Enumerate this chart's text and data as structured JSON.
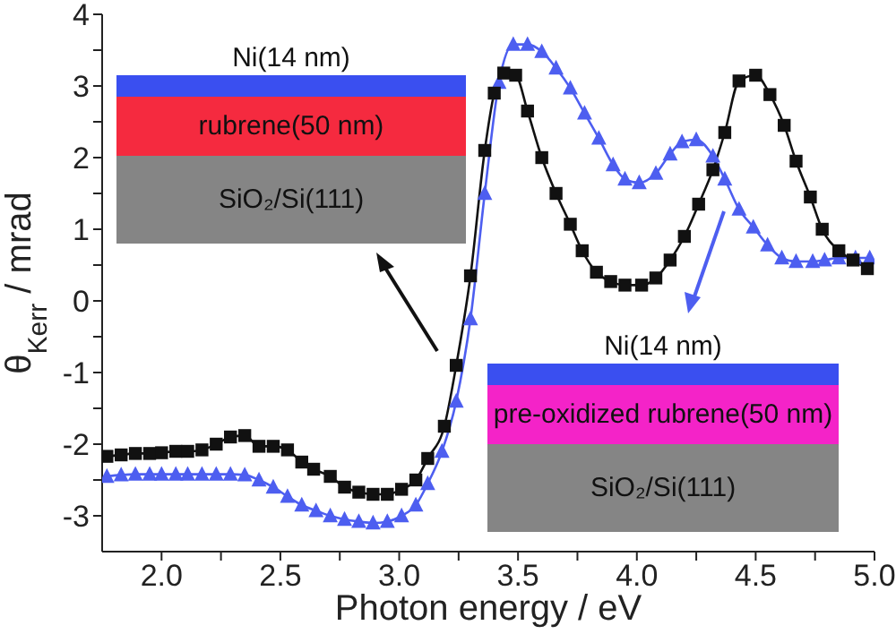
{
  "chart_data": {
    "type": "line",
    "xlabel": "Photon energy / eV",
    "ylabel": "θ$_{Kerr}$ / mrad",
    "xlim": [
      1.75,
      5.0
    ],
    "ylim": [
      -3.5,
      4
    ],
    "xticks": [
      {
        "value": 2,
        "label": "2.0"
      },
      {
        "value": 2.25,
        "label": null
      },
      {
        "value": 2.5,
        "label": "2.5"
      },
      {
        "value": 2.75,
        "label": null
      },
      {
        "value": 3,
        "label": "3.0"
      },
      {
        "value": 3.25,
        "label": null
      },
      {
        "value": 3.5,
        "label": "3.5"
      },
      {
        "value": 3.75,
        "label": null
      },
      {
        "value": 4,
        "label": "4.0"
      },
      {
        "value": 4.25,
        "label": null
      },
      {
        "value": 4.5,
        "label": "4.5"
      },
      {
        "value": 4.75,
        "label": null
      },
      {
        "value": 5,
        "label": "5.0"
      }
    ],
    "yticks": [
      -3,
      {
        "value": -2.5,
        "label": null
      },
      -2,
      {
        "value": -1.5,
        "label": null
      },
      -1,
      {
        "value": -0.5,
        "label": null
      },
      0,
      {
        "value": 0.5,
        "label": null
      },
      1,
      {
        "value": 1.5,
        "label": null
      },
      2,
      {
        "value": 2.5,
        "label": null
      },
      3,
      {
        "value": 3.5,
        "label": null
      },
      4
    ],
    "line_style": "solid",
    "series": [
      {
        "color": "#111111",
        "marker": "square",
        "x": [
          1.77,
          1.83,
          1.89,
          1.95,
          2.0,
          2.06,
          2.11,
          2.17,
          2.23,
          2.29,
          2.35,
          2.41,
          2.47,
          2.53,
          2.59,
          2.64,
          2.71,
          2.77,
          2.83,
          2.89,
          2.95,
          3.01,
          3.07,
          3.12,
          3.19,
          3.24,
          3.3,
          3.36,
          3.4,
          3.44,
          3.49,
          3.54,
          3.6,
          3.66,
          3.72,
          3.77,
          3.83,
          3.89,
          3.95,
          4.02,
          4.08,
          4.14,
          4.2,
          4.26,
          4.32,
          4.37,
          4.43,
          4.5,
          4.56,
          4.62,
          4.67,
          4.73,
          4.78,
          4.85,
          4.91,
          4.97
        ],
        "values": [
          -2.17,
          -2.15,
          -2.13,
          -2.13,
          -2.12,
          -2.1,
          -2.1,
          -2.08,
          -2.0,
          -1.9,
          -1.88,
          -2.03,
          -2.03,
          -2.08,
          -2.25,
          -2.35,
          -2.45,
          -2.6,
          -2.67,
          -2.7,
          -2.7,
          -2.63,
          -2.5,
          -2.2,
          -1.75,
          -0.9,
          0.35,
          2.1,
          2.9,
          3.18,
          3.15,
          2.65,
          2.0,
          1.5,
          1.07,
          0.7,
          0.4,
          0.27,
          0.22,
          0.22,
          0.32,
          0.57,
          0.9,
          1.35,
          1.83,
          2.35,
          3.07,
          3.15,
          2.88,
          2.45,
          1.95,
          1.45,
          1.0,
          0.7,
          0.57,
          0.45
        ]
      },
      {
        "color": "#4d5ef0",
        "marker": "triangle",
        "x": [
          1.77,
          1.83,
          1.89,
          1.95,
          2.0,
          2.06,
          2.11,
          2.17,
          2.23,
          2.29,
          2.35,
          2.41,
          2.47,
          2.53,
          2.59,
          2.65,
          2.71,
          2.77,
          2.83,
          2.89,
          2.95,
          3.01,
          3.07,
          3.12,
          3.18,
          3.24,
          3.3,
          3.36,
          3.42,
          3.48,
          3.54,
          3.6,
          3.66,
          3.72,
          3.78,
          3.84,
          3.9,
          3.95,
          4.01,
          4.08,
          4.14,
          4.19,
          4.25,
          4.32,
          4.37,
          4.43,
          4.49,
          4.55,
          4.61,
          4.67,
          4.74,
          4.79,
          4.85,
          4.92,
          4.98
        ],
        "values": [
          -2.45,
          -2.43,
          -2.42,
          -2.42,
          -2.42,
          -2.42,
          -2.42,
          -2.42,
          -2.42,
          -2.42,
          -2.43,
          -2.5,
          -2.6,
          -2.73,
          -2.85,
          -2.93,
          -3.0,
          -3.05,
          -3.08,
          -3.1,
          -3.08,
          -3.0,
          -2.85,
          -2.55,
          -2.1,
          -1.4,
          -0.25,
          1.5,
          3.05,
          3.58,
          3.58,
          3.48,
          3.25,
          2.97,
          2.62,
          2.27,
          1.9,
          1.7,
          1.65,
          1.78,
          2.05,
          2.22,
          2.25,
          2.02,
          1.7,
          1.28,
          1.03,
          0.78,
          0.6,
          0.55,
          0.55,
          0.57,
          0.6,
          0.6,
          0.6
        ]
      }
    ],
    "annotations": [
      "Ni(14 nm)",
      "rubrene(50 nm)",
      "SiO₂/Si(111)",
      "Ni(14 nm)",
      "pre-oxidized rubrene(50 nm)",
      "SiO₂/Si(111)"
    ]
  }
}
